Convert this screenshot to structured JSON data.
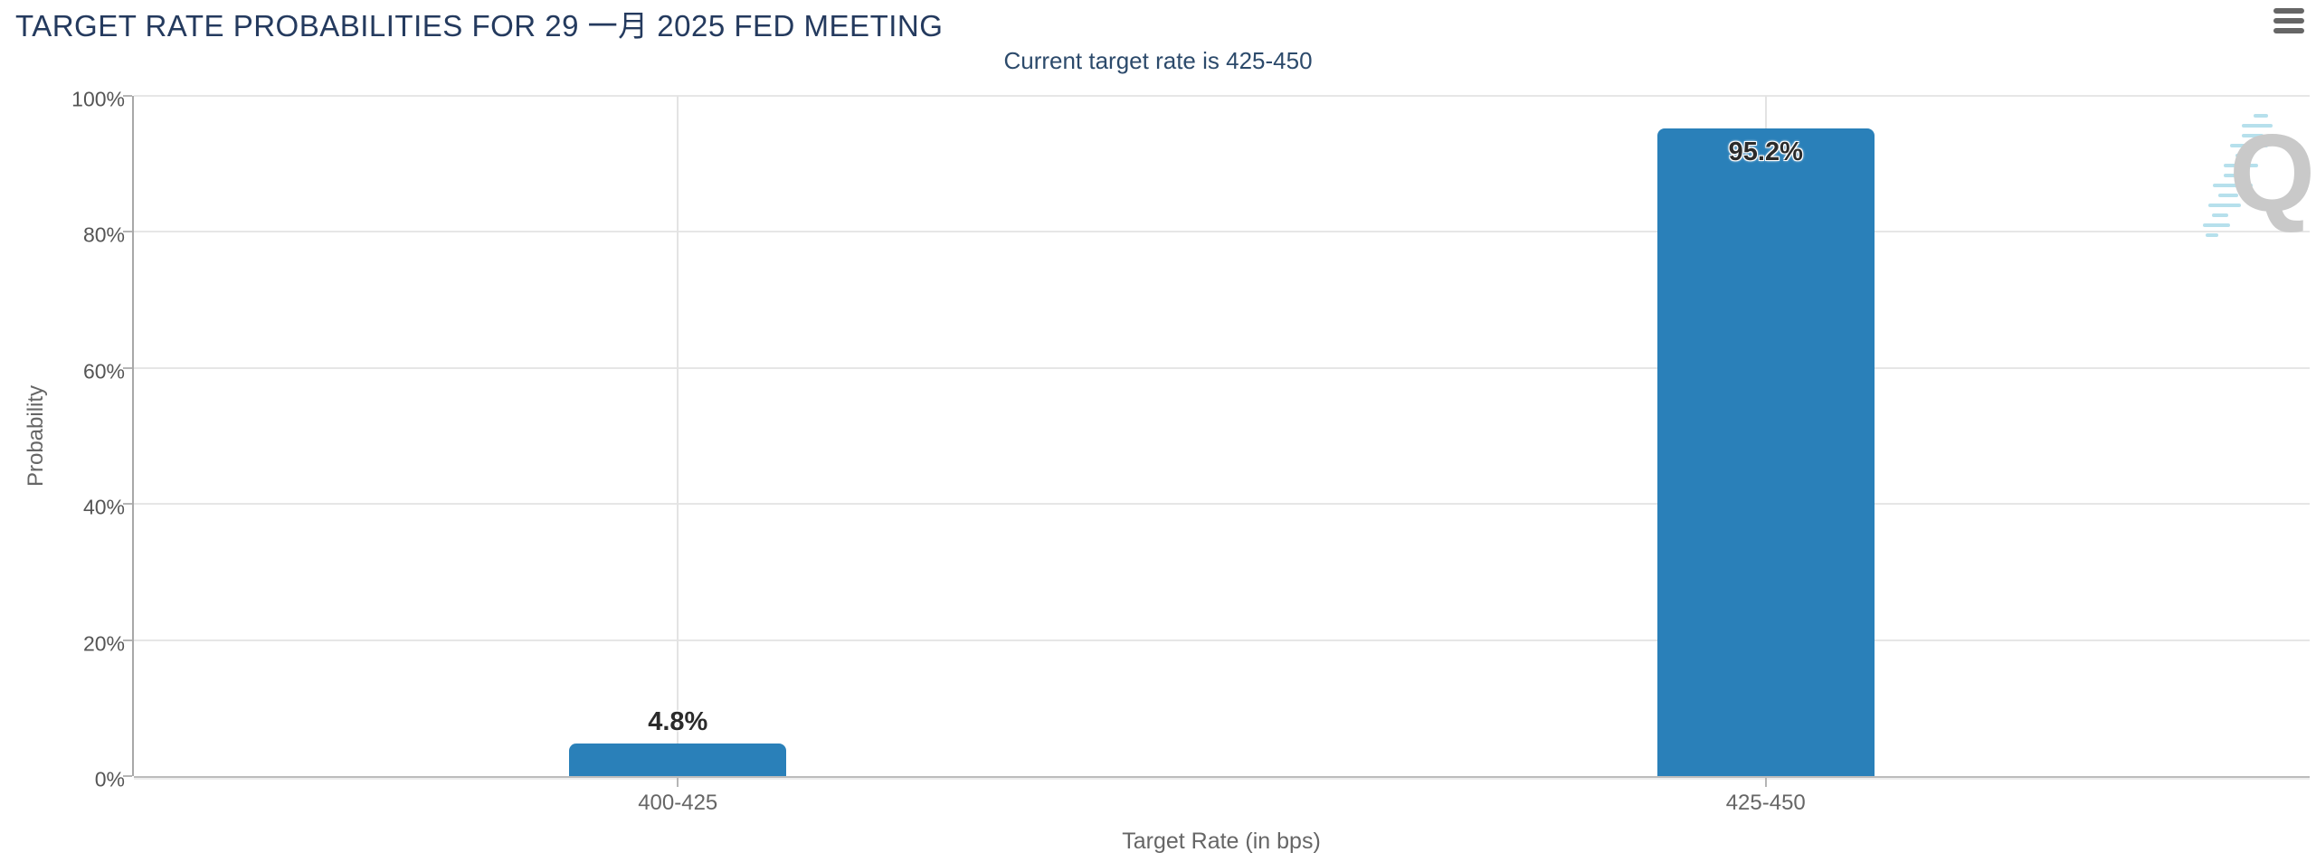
{
  "chart_data": {
    "type": "bar",
    "title": "TARGET RATE PROBABILITIES FOR 29 一月 2025 FED MEETING",
    "subtitle": "Current target rate is 425-450",
    "categories": [
      "400-425",
      "425-450"
    ],
    "values": [
      4.8,
      95.2
    ],
    "value_labels": [
      "4.8%",
      "95.2%"
    ],
    "xlabel": "Target Rate (in bps)",
    "ylabel": "Probability",
    "ylim": [
      0,
      100
    ],
    "yticks": [
      {
        "value": 0,
        "label": "0%"
      },
      {
        "value": 20,
        "label": "20%"
      },
      {
        "value": 40,
        "label": "40%"
      },
      {
        "value": 60,
        "label": "60%"
      },
      {
        "value": 80,
        "label": "80%"
      },
      {
        "value": 100,
        "label": "100%"
      }
    ],
    "grid": true,
    "legend": false,
    "bar_color": "#2a80b9"
  },
  "menu": {
    "icon": "hamburger-menu-icon"
  },
  "watermark": {
    "letter": "Q"
  },
  "colors": {
    "title": "#243a5e",
    "subtitle": "#2c4a6b",
    "bar": "#2a80b9",
    "axis_text": "#666666",
    "tick_text": "#555555",
    "gridline": "#e6e6e6",
    "axis_line": "#bcbcbc",
    "menu_icon": "#666666",
    "watermark_q": "#c9c9c9",
    "watermark_dash": "#a9dbe9"
  }
}
